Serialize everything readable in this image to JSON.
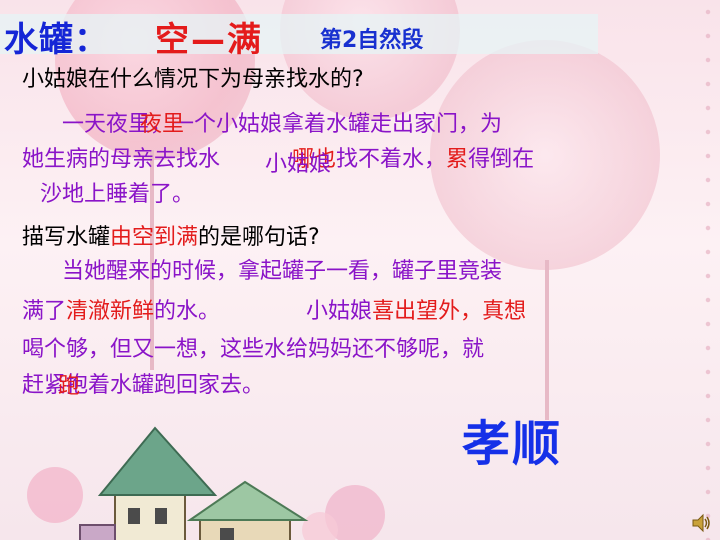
{
  "title": {
    "label1": "水罐：",
    "label2": "空—满",
    "label3": "第2自然段"
  },
  "question1": "小姑娘在什么情况下为母亲找水的?",
  "para1": {
    "l1a": "一天夜里",
    "l1r": "夜里",
    "l1b": "，一个小姑娘拿着水罐走出家门，为",
    "l2a": "她生病的母亲去找水",
    "l2r": "小姑娘",
    "l2c": "哪也",
    "l2d": "找不着水，",
    "l2e": "累",
    "l2f": "得倒在",
    "l3": "沙地上睡着了。"
  },
  "question2": {
    "a": "描写水罐",
    "b": "由空到满",
    "c": "的是哪句话?"
  },
  "para2": {
    "l1": "当她醒来的时候，拿起罐子一看，罐子里竟装",
    "l2a": "满了",
    "l2b": "清澈新鲜",
    "l2c": "的水。",
    "l2d": "小姑娘",
    "l2e": "喜出望外，真想",
    "l3": "喝个够，但又一想，这些水给妈妈还不够呢，就",
    "l4a": "赶紧",
    "l4r": "跑",
    "l4b": "抱着水罐跑回家去。"
  },
  "keyword": "孝顺",
  "colors": {
    "blue": "#1526d6",
    "red": "#e31c1c",
    "purple": "#8a14c8"
  },
  "icons": [
    "speaker-icon"
  ]
}
